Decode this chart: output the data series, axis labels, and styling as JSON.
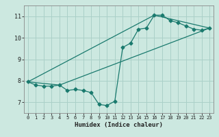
{
  "title": "",
  "xlabel": "Humidex (Indice chaleur)",
  "background_color": "#cce8e0",
  "grid_color": "#aad0c8",
  "line_color": "#1a7a6e",
  "xlim": [
    -0.5,
    23.5
  ],
  "ylim": [
    6.5,
    11.5
  ],
  "xticks": [
    0,
    1,
    2,
    3,
    4,
    5,
    6,
    7,
    8,
    9,
    10,
    11,
    12,
    13,
    14,
    15,
    16,
    17,
    18,
    19,
    20,
    21,
    22,
    23
  ],
  "yticks": [
    7,
    8,
    9,
    10,
    11
  ],
  "line1_x": [
    0,
    1,
    2,
    3,
    4,
    5,
    6,
    7,
    8,
    9,
    10,
    11,
    12,
    13,
    14,
    15,
    16,
    17,
    18,
    19,
    20,
    21,
    22,
    23
  ],
  "line1_y": [
    7.95,
    7.8,
    7.75,
    7.75,
    7.8,
    7.55,
    7.6,
    7.55,
    7.45,
    6.9,
    6.85,
    7.05,
    9.55,
    9.75,
    10.4,
    10.45,
    11.05,
    11.05,
    10.8,
    10.7,
    10.55,
    10.4,
    10.35,
    10.45
  ],
  "line2_x": [
    0,
    4,
    23
  ],
  "line2_y": [
    7.95,
    7.8,
    10.45
  ],
  "line3_x": [
    0,
    16,
    23
  ],
  "line3_y": [
    7.95,
    11.05,
    10.45
  ],
  "marker_size": 2.5,
  "line_width": 0.9
}
